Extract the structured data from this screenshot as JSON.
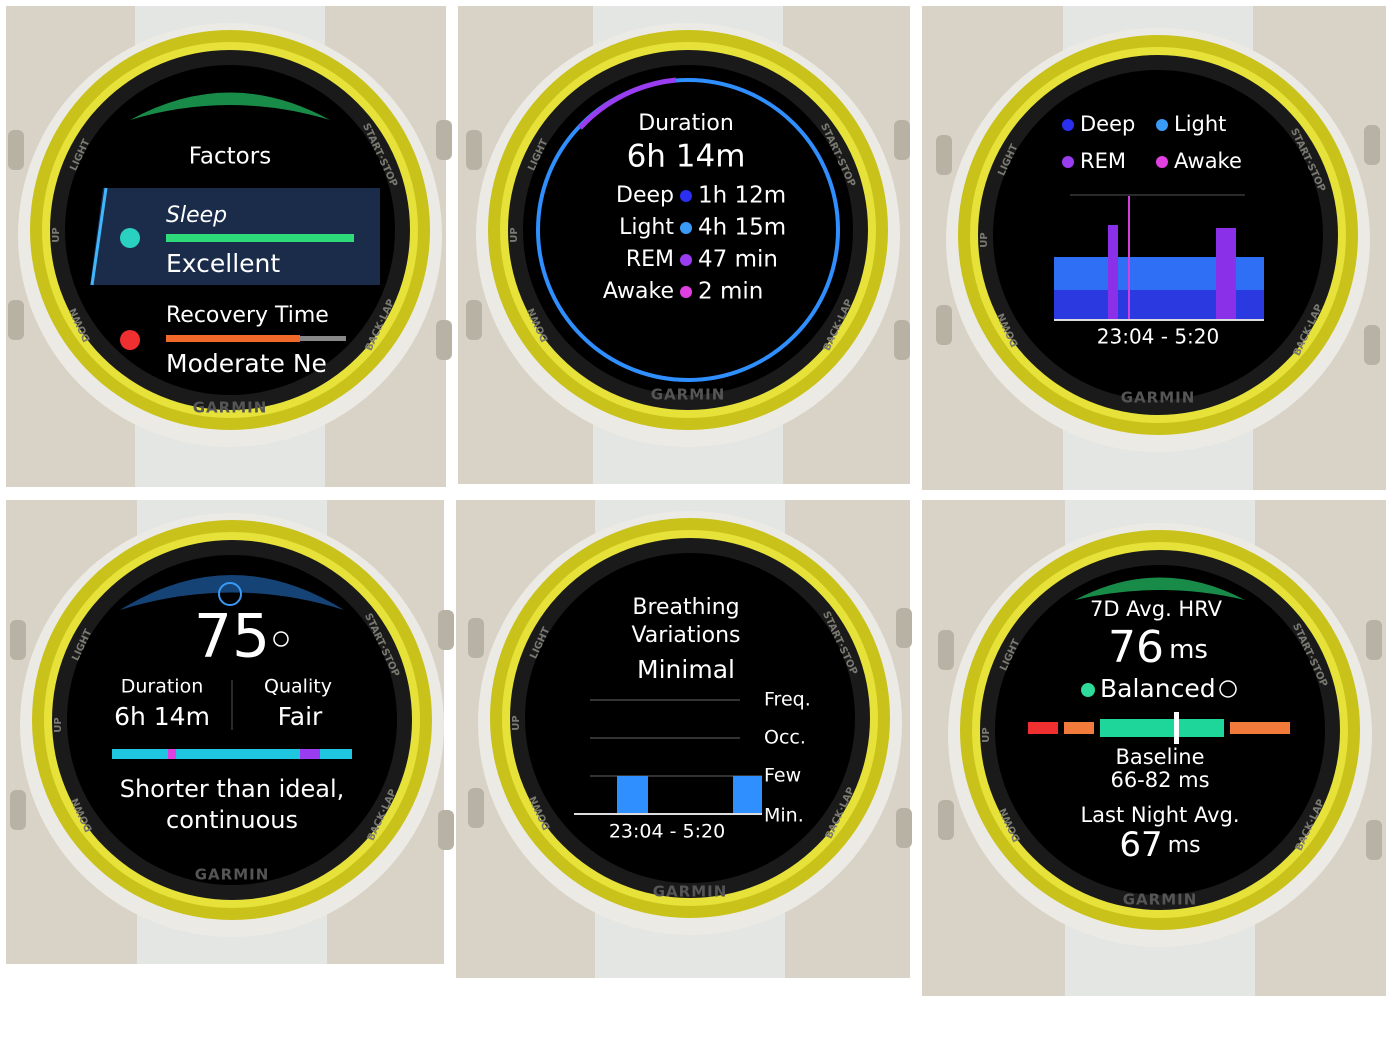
{
  "brand": "GARMIN",
  "bezel": {
    "light": "LIGHT",
    "start_stop": "START·STOP",
    "up": "UP",
    "down": "DOWN",
    "back_lap": "BACK·LAP"
  },
  "panels": [
    {
      "title": "Factors",
      "items": [
        {
          "label": "Sleep",
          "status": "Excellent"
        },
        {
          "label": "Recovery Time",
          "status": "Moderate Ne"
        }
      ]
    },
    {
      "title": "Duration",
      "total": "6h 14m",
      "stages": [
        {
          "name": "Deep",
          "value": "1h 12m"
        },
        {
          "name": "Light",
          "value": "4h 15m"
        },
        {
          "name": "REM",
          "value": "47 min"
        },
        {
          "name": "Awake",
          "value": "2 min"
        }
      ]
    },
    {
      "legend": [
        "Deep",
        "Light",
        "REM",
        "Awake"
      ],
      "range": "23:04 - 5:20"
    },
    {
      "score": "75",
      "duration_label": "Duration",
      "duration": "6h 14m",
      "quality_label": "Quality",
      "quality": "Fair",
      "message": [
        "Shorter than ideal,",
        "continuous"
      ]
    },
    {
      "title": [
        "Breathing",
        "Variations"
      ],
      "status": "Minimal",
      "levels": [
        "Freq.",
        "Occ.",
        "Few",
        "Min."
      ],
      "range": "23:04 - 5:20"
    },
    {
      "title": "7D Avg. HRV",
      "value": "76",
      "unit": "ms",
      "status": "Balanced",
      "baseline_label": "Baseline",
      "baseline": "66-82 ms",
      "last_label": "Last Night Avg.",
      "last": "67",
      "last_unit": "ms"
    }
  ]
}
